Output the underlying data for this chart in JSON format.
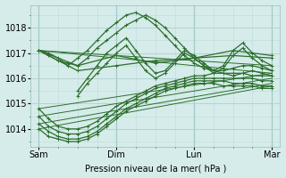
{
  "background_color": "#d5ecea",
  "grid_color": "#b0cfcf",
  "line_color": "#2d6e2d",
  "xlabel": "Pression niveau de la mer( hPa )",
  "xlabels": [
    "Sam",
    "Dim",
    "Lun",
    "Mar"
  ],
  "xtick_pos": [
    0,
    96,
    192,
    288
  ],
  "ylim": [
    1013.3,
    1018.9
  ],
  "yticks": [
    1014,
    1015,
    1016,
    1017,
    1018
  ],
  "figsize": [
    3.2,
    2.0
  ],
  "dpi": 100,
  "series": [
    {
      "x": [
        0,
        12,
        24,
        36,
        48,
        60,
        72,
        84,
        96,
        108,
        120,
        132,
        144,
        156,
        168,
        180,
        192,
        204,
        216,
        228,
        240,
        252,
        264,
        276,
        288
      ],
      "y": [
        1017.1,
        1016.9,
        1016.7,
        1016.6,
        1016.5,
        1016.8,
        1017.2,
        1017.5,
        1017.8,
        1018.1,
        1018.3,
        1018.5,
        1018.3,
        1018.0,
        1017.6,
        1017.2,
        1016.8,
        1016.5,
        1016.3,
        1016.2,
        1016.1,
        1016.2,
        1016.3,
        1016.2,
        1016.1
      ],
      "straight": false
    },
    {
      "x": [
        0,
        12,
        24,
        36,
        48,
        60,
        72,
        84,
        96,
        108,
        120,
        132,
        144,
        156,
        168,
        180,
        192,
        204,
        216,
        228,
        240,
        252,
        264,
        276,
        288
      ],
      "y": [
        1017.1,
        1017.0,
        1016.8,
        1016.5,
        1016.8,
        1017.1,
        1017.5,
        1017.9,
        1018.2,
        1018.5,
        1018.6,
        1018.4,
        1018.1,
        1017.7,
        1017.3,
        1016.9,
        1016.6,
        1016.4,
        1016.3,
        1016.3,
        1016.4,
        1016.5,
        1016.5,
        1016.4,
        1016.3
      ],
      "straight": false
    },
    {
      "x": [
        0,
        48,
        96,
        144,
        192,
        240,
        288
      ],
      "y": [
        1017.1,
        1016.5,
        1016.9,
        1016.6,
        1016.8,
        1017.1,
        1016.9
      ],
      "straight": false,
      "skip_middle": true
    },
    {
      "x": [
        0,
        48,
        96,
        144,
        192,
        240,
        288
      ],
      "y": [
        1017.1,
        1016.3,
        1016.5,
        1016.7,
        1016.8,
        1016.9,
        1016.8
      ],
      "straight": false,
      "skip_middle": true
    },
    {
      "x": [
        0,
        288
      ],
      "y": [
        1017.1,
        1016.2
      ],
      "straight": true
    },
    {
      "x": [
        0,
        288
      ],
      "y": [
        1017.1,
        1016.5
      ],
      "straight": true
    },
    {
      "x": [
        0,
        288
      ],
      "y": [
        1014.8,
        1016.2
      ],
      "straight": true
    },
    {
      "x": [
        0,
        288
      ],
      "y": [
        1014.5,
        1016.0
      ],
      "straight": true
    },
    {
      "x": [
        0,
        288
      ],
      "y": [
        1014.2,
        1015.8
      ],
      "straight": true
    },
    {
      "x": [
        0,
        288
      ],
      "y": [
        1014.0,
        1015.7
      ],
      "straight": true
    },
    {
      "x": [
        0,
        12,
        24,
        36,
        48,
        60,
        72,
        84,
        96,
        108,
        120,
        132,
        144,
        156,
        168,
        180,
        192,
        204,
        216,
        228,
        240,
        252,
        264,
        276,
        288
      ],
      "y": [
        1014.8,
        1014.4,
        1014.1,
        1014.0,
        1014.0,
        1014.1,
        1014.3,
        1014.6,
        1014.9,
        1015.1,
        1015.3,
        1015.5,
        1015.7,
        1015.8,
        1015.9,
        1016.0,
        1016.1,
        1016.1,
        1016.2,
        1016.2,
        1016.2,
        1016.2,
        1016.1,
        1016.1,
        1016.1
      ],
      "straight": false
    },
    {
      "x": [
        0,
        12,
        24,
        36,
        48,
        60,
        72,
        84,
        96,
        108,
        120,
        132,
        144,
        156,
        168,
        180,
        192,
        204,
        216,
        228,
        240,
        252,
        264,
        276,
        288
      ],
      "y": [
        1014.5,
        1014.1,
        1013.9,
        1013.8,
        1013.8,
        1013.9,
        1014.1,
        1014.4,
        1014.7,
        1015.0,
        1015.2,
        1015.4,
        1015.6,
        1015.7,
        1015.8,
        1015.9,
        1016.0,
        1016.0,
        1016.0,
        1016.0,
        1016.0,
        1016.0,
        1016.0,
        1015.9,
        1015.9
      ],
      "straight": false
    },
    {
      "x": [
        0,
        12,
        24,
        36,
        48,
        60,
        72,
        84,
        96,
        108,
        120,
        132,
        144,
        156,
        168,
        180,
        192,
        204,
        216,
        228,
        240,
        252,
        264,
        276,
        288
      ],
      "y": [
        1014.2,
        1013.9,
        1013.7,
        1013.6,
        1013.6,
        1013.7,
        1013.9,
        1014.2,
        1014.5,
        1014.8,
        1015.0,
        1015.2,
        1015.4,
        1015.6,
        1015.7,
        1015.8,
        1015.9,
        1015.9,
        1015.9,
        1015.9,
        1015.8,
        1015.8,
        1015.8,
        1015.7,
        1015.7
      ],
      "straight": false
    },
    {
      "x": [
        0,
        12,
        24,
        36,
        48,
        60,
        72,
        84,
        96,
        108,
        120,
        132,
        144,
        156,
        168,
        180,
        192,
        204,
        216,
        228,
        240,
        252,
        264,
        276,
        288
      ],
      "y": [
        1014.0,
        1013.7,
        1013.6,
        1013.5,
        1013.5,
        1013.6,
        1013.8,
        1014.1,
        1014.4,
        1014.7,
        1014.9,
        1015.1,
        1015.3,
        1015.5,
        1015.6,
        1015.7,
        1015.8,
        1015.8,
        1015.8,
        1015.7,
        1015.7,
        1015.7,
        1015.7,
        1015.6,
        1015.6
      ],
      "straight": false
    }
  ],
  "peak_zigzag": [
    {
      "x": [
        48,
        60,
        72,
        84,
        96,
        108,
        120,
        132,
        144,
        156,
        168,
        180,
        192,
        204,
        216,
        228,
        240,
        252,
        264,
        276,
        288
      ],
      "y": [
        1015.5,
        1016.0,
        1016.5,
        1017.0,
        1017.3,
        1017.6,
        1017.1,
        1016.6,
        1016.2,
        1016.3,
        1016.7,
        1017.1,
        1016.9,
        1016.6,
        1016.3,
        1016.5,
        1017.1,
        1017.4,
        1017.0,
        1016.7,
        1016.5
      ]
    },
    {
      "x": [
        48,
        60,
        72,
        84,
        96,
        108,
        120,
        132,
        144,
        156,
        168,
        180,
        192,
        204,
        216,
        228,
        240,
        252,
        264,
        276,
        288
      ],
      "y": [
        1015.3,
        1015.8,
        1016.2,
        1016.6,
        1017.0,
        1017.3,
        1016.8,
        1016.3,
        1016.0,
        1016.2,
        1016.6,
        1017.0,
        1016.8,
        1016.5,
        1016.2,
        1016.4,
        1016.9,
        1017.2,
        1016.8,
        1016.5,
        1016.3
      ]
    }
  ]
}
